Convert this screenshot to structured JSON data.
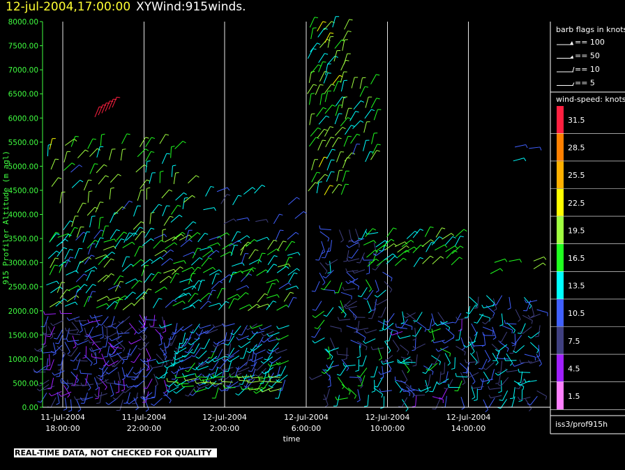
{
  "title": {
    "datetime": "12-jul-2004,17:00:00",
    "name": "XYWind:915winds."
  },
  "notice": "REAL-TIME DATA, NOT CHECKED FOR QUALITY",
  "source_label": "iss3/prof915h",
  "legend": {
    "barb_title": "barb flags in knots",
    "barbs": [
      "== 100",
      "== 50",
      "== 10",
      "== 5"
    ],
    "speed_title": "wind-speed: knots",
    "speed_levels": [
      {
        "label": "31.5",
        "color": "#ff2040"
      },
      {
        "label": "28.5",
        "color": "#ff8000"
      },
      {
        "label": "25.5",
        "color": "#ffb000"
      },
      {
        "label": "22.5",
        "color": "#ffff00"
      },
      {
        "label": "19.5",
        "color": "#a0ff40"
      },
      {
        "label": "16.5",
        "color": "#20ff20"
      },
      {
        "label": "13.5",
        "color": "#00ffff"
      },
      {
        "label": "10.5",
        "color": "#4060ff"
      },
      {
        "label": "7.5",
        "color": "#404080"
      },
      {
        "label": "4.5",
        "color": "#a020ff"
      },
      {
        "label": "1.5",
        "color": "#ff80ff"
      }
    ]
  },
  "chart_data": {
    "type": "scatter",
    "xlabel": "time",
    "ylabel": "915 Profiler Altitude (m agl)",
    "ylim": [
      0,
      8000
    ],
    "y_ticks": [
      "0.00",
      "500.00",
      "1000.00",
      "1500.00",
      "2000.00",
      "2500.00",
      "3000.00",
      "3500.00",
      "4000.00",
      "4500.00",
      "5000.00",
      "5500.00",
      "6000.00",
      "6500.00",
      "7000.00",
      "7500.00",
      "8000.00"
    ],
    "x_ticks": [
      {
        "date": "11-Jul-2004",
        "time": "18:00:00"
      },
      {
        "date": "11-Jul-2004",
        "time": "22:00:00"
      },
      {
        "date": "12-Jul-2004",
        "time": "2:00:00"
      },
      {
        "date": "12-Jul-2004",
        "time": "6:00:00"
      },
      {
        "date": "12-Jul-2004",
        "time": "10:00:00"
      },
      {
        "date": "12-Jul-2004",
        "time": "14:00:00"
      }
    ],
    "grid": "vertical lines at time ticks"
  }
}
